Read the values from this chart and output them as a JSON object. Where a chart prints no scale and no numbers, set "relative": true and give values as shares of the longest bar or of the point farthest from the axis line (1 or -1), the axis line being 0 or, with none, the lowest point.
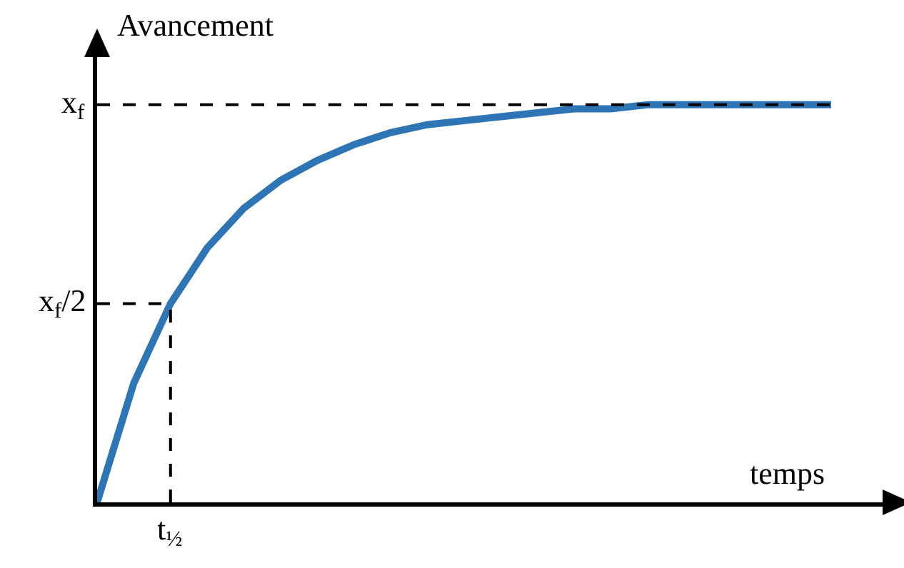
{
  "chart_data": {
    "type": "line",
    "xlabel": "temps",
    "ylabel": "Avancement",
    "categories": [
      null,
      null,
      null,
      null,
      null,
      null,
      null,
      null,
      null,
      null,
      null,
      null,
      null,
      null,
      null,
      null,
      null,
      null,
      null,
      null,
      null
    ],
    "series": [
      {
        "color": "#2e75b6",
        "values": [
          0,
          0.3,
          0.5,
          0.64,
          0.74,
          0.81,
          0.86,
          0.9,
          0.93,
          0.95,
          0.96,
          0.97,
          0.98,
          0.99,
          0.99,
          1,
          1,
          1,
          1,
          1,
          1
        ]
      }
    ],
    "relative": true,
    "ref_lines": [
      {
        "axis": "y",
        "value": 1,
        "label": "x$_{f}$",
        "color": "#000000",
        "line_style": "dashed"
      },
      {
        "axis": "y",
        "value": 0.5,
        "label": "x$_{f}$/2",
        "color": "#000000",
        "line_style": "dashed"
      }
    ],
    "annotations": [
      "t$_{½}$"
    ],
    "legend": false,
    "marker": "none",
    "line_style": "solid"
  }
}
